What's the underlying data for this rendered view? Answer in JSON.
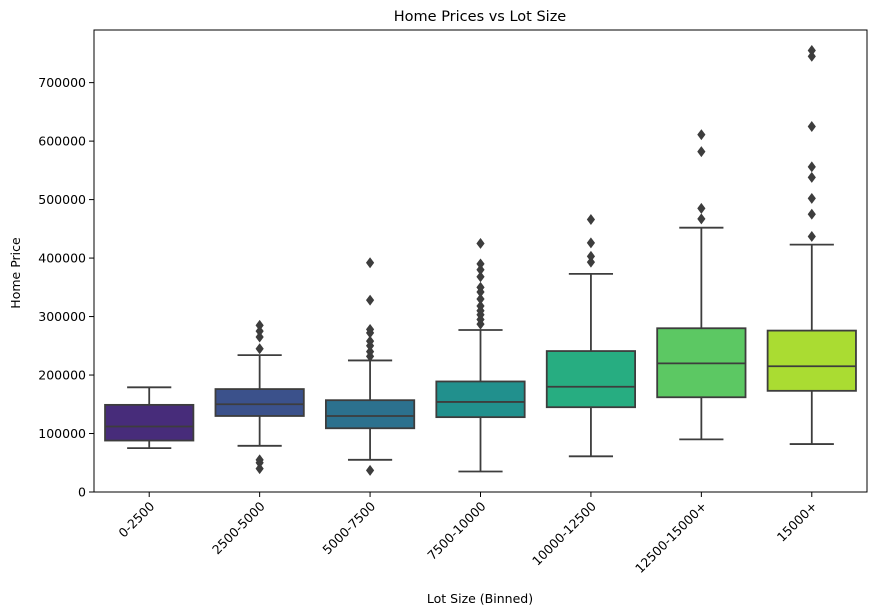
{
  "chart_data": {
    "type": "box",
    "title": "Home Prices vs Lot Size",
    "xlabel": "Lot Size (Binned)",
    "ylabel": "Home Price",
    "ylim": [
      0,
      790000
    ],
    "yticks": [
      0,
      100000,
      200000,
      300000,
      400000,
      500000,
      600000,
      700000
    ],
    "ytick_labels": [
      "0",
      "100000",
      "200000",
      "300000",
      "400000",
      "500000",
      "600000",
      "700000"
    ],
    "grid": false,
    "categories": [
      "0-2500",
      "2500-5000",
      "5000-7500",
      "7500-10000",
      "10000-12500",
      "12500-15000+",
      "15000+"
    ],
    "boxes": [
      {
        "category": "0-2500",
        "whisker_low": 75000,
        "q1": 88000,
        "median": 112000,
        "q3": 149000,
        "whisker_high": 179000,
        "outliers": [],
        "color": "#472c7a"
      },
      {
        "category": "2500-5000",
        "whisker_low": 79000,
        "q1": 130000,
        "median": 150000,
        "q3": 176000,
        "whisker_high": 234000,
        "outliers": [
          40000,
          50000,
          55000,
          245000,
          265000,
          275000,
          285000
        ],
        "color": "#3b518b"
      },
      {
        "category": "5000-7500",
        "whisker_low": 55000,
        "q1": 109000,
        "median": 130000,
        "q3": 157000,
        "whisker_high": 225000,
        "outliers": [
          37000,
          232000,
          240000,
          250000,
          258000,
          272000,
          278000,
          328000,
          392000
        ],
        "color": "#2c718e"
      },
      {
        "category": "7500-10000",
        "whisker_low": 35000,
        "q1": 128000,
        "median": 154000,
        "q3": 189000,
        "whisker_high": 277000,
        "outliers": [
          287000,
          295000,
          303000,
          310000,
          318000,
          330000,
          342000,
          350000,
          368000,
          380000,
          390000,
          425000
        ],
        "color": "#21908d"
      },
      {
        "category": "10000-12500",
        "whisker_low": 61000,
        "q1": 145000,
        "median": 180000,
        "q3": 241000,
        "whisker_high": 373000,
        "outliers": [
          393000,
          403000,
          426000,
          466000
        ],
        "color": "#27ad81"
      },
      {
        "category": "12500-15000+",
        "whisker_low": 90000,
        "q1": 162000,
        "median": 220000,
        "q3": 280000,
        "whisker_high": 452000,
        "outliers": [
          467000,
          485000,
          582000,
          611000
        ],
        "color": "#5cc863"
      },
      {
        "category": "15000+",
        "whisker_low": 82000,
        "q1": 173000,
        "median": 215000,
        "q3": 276000,
        "whisker_high": 423000,
        "outliers": [
          437000,
          475000,
          502000,
          538000,
          556000,
          625000,
          745000,
          755000
        ],
        "color": "#aadc32"
      }
    ]
  }
}
